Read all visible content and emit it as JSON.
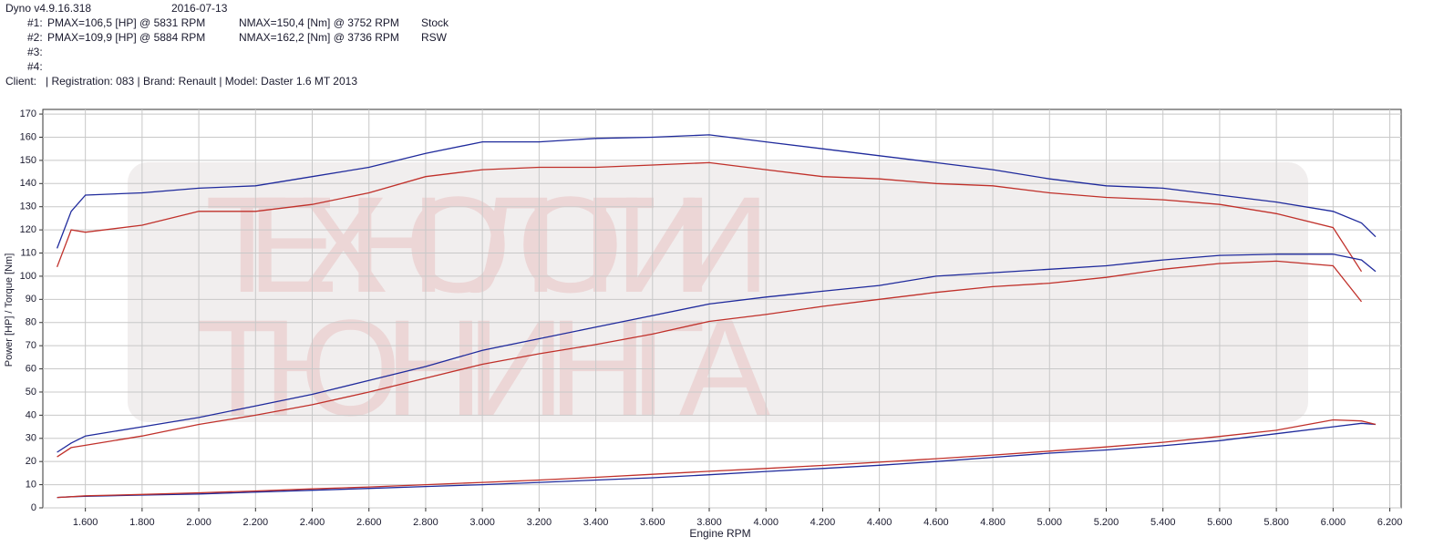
{
  "header": {
    "app": "Dyno v4.9.16.318",
    "date": "2016-07-13",
    "runs": [
      {
        "label": "#1:",
        "pmax": "PMAX=106,5 [HP] @ 5831 RPM",
        "nmax": "NMAX=150,4 [Nm] @ 3752 RPM",
        "name": "Stock"
      },
      {
        "label": "#2:",
        "pmax": "PMAX=109,9 [HP] @ 5884 RPM",
        "nmax": "NMAX=162,2 [Nm] @ 3736 RPM",
        "name": "RSW"
      },
      {
        "label": "#3:"
      },
      {
        "label": "#4:"
      }
    ],
    "client": "Client:   | Registration: 083 | Brand: Renault | Model: Daster 1.6 MT 2013",
    "watermark": [
      "ТЕХНОЛОГИИ",
      "ТЮНИНГА"
    ]
  },
  "chart_data": {
    "type": "line",
    "xlabel": "Engine RPM",
    "ylabel": "Power [HP] / Torque [Nm]",
    "x": [
      1500,
      1550,
      1600,
      1800,
      2000,
      2200,
      2400,
      2600,
      2800,
      3000,
      3200,
      3400,
      3600,
      3800,
      4000,
      4200,
      4400,
      4600,
      4800,
      5000,
      5200,
      5400,
      5600,
      5800,
      6000,
      6100,
      6150
    ],
    "series": [
      {
        "color": "#1f2a9c",
        "values": [
          112,
          128,
          135,
          136,
          138,
          139,
          143,
          147,
          153,
          158,
          158,
          159.5,
          160,
          161,
          158,
          155,
          152,
          149,
          146,
          142,
          139,
          138,
          135,
          132,
          128,
          123,
          117
        ]
      },
      {
        "color": "#c0302a",
        "values": [
          104,
          120,
          119,
          122,
          128,
          128,
          131,
          136,
          143,
          146,
          147,
          147,
          148,
          149,
          146,
          143,
          142,
          140,
          139,
          136,
          134,
          133,
          131,
          127,
          121,
          102,
          null
        ]
      },
      {
        "color": "#1f2a9c",
        "values": [
          24,
          28,
          31,
          35,
          39,
          44,
          49,
          55,
          61,
          68,
          73,
          78,
          83,
          88,
          91,
          93.5,
          96,
          100,
          101.5,
          103,
          104.5,
          107,
          109,
          109.5,
          109.5,
          107,
          102
        ]
      },
      {
        "color": "#c0302a",
        "values": [
          22,
          26,
          27,
          31,
          36,
          40,
          44.5,
          50,
          56,
          62,
          66.5,
          70.5,
          75,
          80.5,
          83.5,
          87,
          90,
          93,
          95.5,
          97,
          99.5,
          103,
          105.5,
          106.5,
          104.5,
          89,
          null
        ]
      },
      {
        "color": "#1f2a9c",
        "values": [
          4.5,
          4.8,
          5,
          5.5,
          6,
          6.8,
          7.6,
          8.4,
          9.2,
          10,
          11,
          12,
          13,
          14.3,
          15.7,
          17,
          18.4,
          20,
          21.8,
          23.6,
          25,
          26.8,
          29,
          32,
          35,
          36.5,
          36
        ]
      },
      {
        "color": "#c0302a",
        "values": [
          4.5,
          4.8,
          5.2,
          5.8,
          6.5,
          7.3,
          8.2,
          9,
          10,
          11,
          12,
          13.2,
          14.5,
          15.8,
          17,
          18.3,
          19.7,
          21.2,
          22.8,
          24.5,
          26.3,
          28.3,
          30.8,
          33.5,
          38,
          37.5,
          36
        ]
      }
    ],
    "xlim": [
      1450,
      6240
    ],
    "ylim": [
      0,
      172
    ],
    "xticks": [
      {
        "value": 1600,
        "label": "1.600"
      },
      {
        "value": 1800,
        "label": "1.800"
      },
      {
        "value": 2000,
        "label": "2.000"
      },
      {
        "value": 2200,
        "label": "2.200"
      },
      {
        "value": 2400,
        "label": "2.400"
      },
      {
        "value": 2600,
        "label": "2.600"
      },
      {
        "value": 2800,
        "label": "2.800"
      },
      {
        "value": 3000,
        "label": "3.000"
      },
      {
        "value": 3200,
        "label": "3.200"
      },
      {
        "value": 3400,
        "label": "3.400"
      },
      {
        "value": 3600,
        "label": "3.600"
      },
      {
        "value": 3800,
        "label": "3.800"
      },
      {
        "value": 4000,
        "label": "4.000"
      },
      {
        "value": 4200,
        "label": "4.200"
      },
      {
        "value": 4400,
        "label": "4.400"
      },
      {
        "value": 4600,
        "label": "4.600"
      },
      {
        "value": 4800,
        "label": "4.800"
      },
      {
        "value": 5000,
        "label": "5.000"
      },
      {
        "value": 5200,
        "label": "5.200"
      },
      {
        "value": 5400,
        "label": "5.400"
      },
      {
        "value": 5600,
        "label": "5.600"
      },
      {
        "value": 5800,
        "label": "5.800"
      },
      {
        "value": 6000,
        "label": "6.000"
      },
      {
        "value": 6200,
        "label": "6.200"
      }
    ],
    "yticks": [
      0,
      10,
      20,
      30,
      40,
      50,
      60,
      70,
      80,
      90,
      100,
      110,
      120,
      130,
      140,
      150,
      160,
      170
    ],
    "grid": true
  }
}
